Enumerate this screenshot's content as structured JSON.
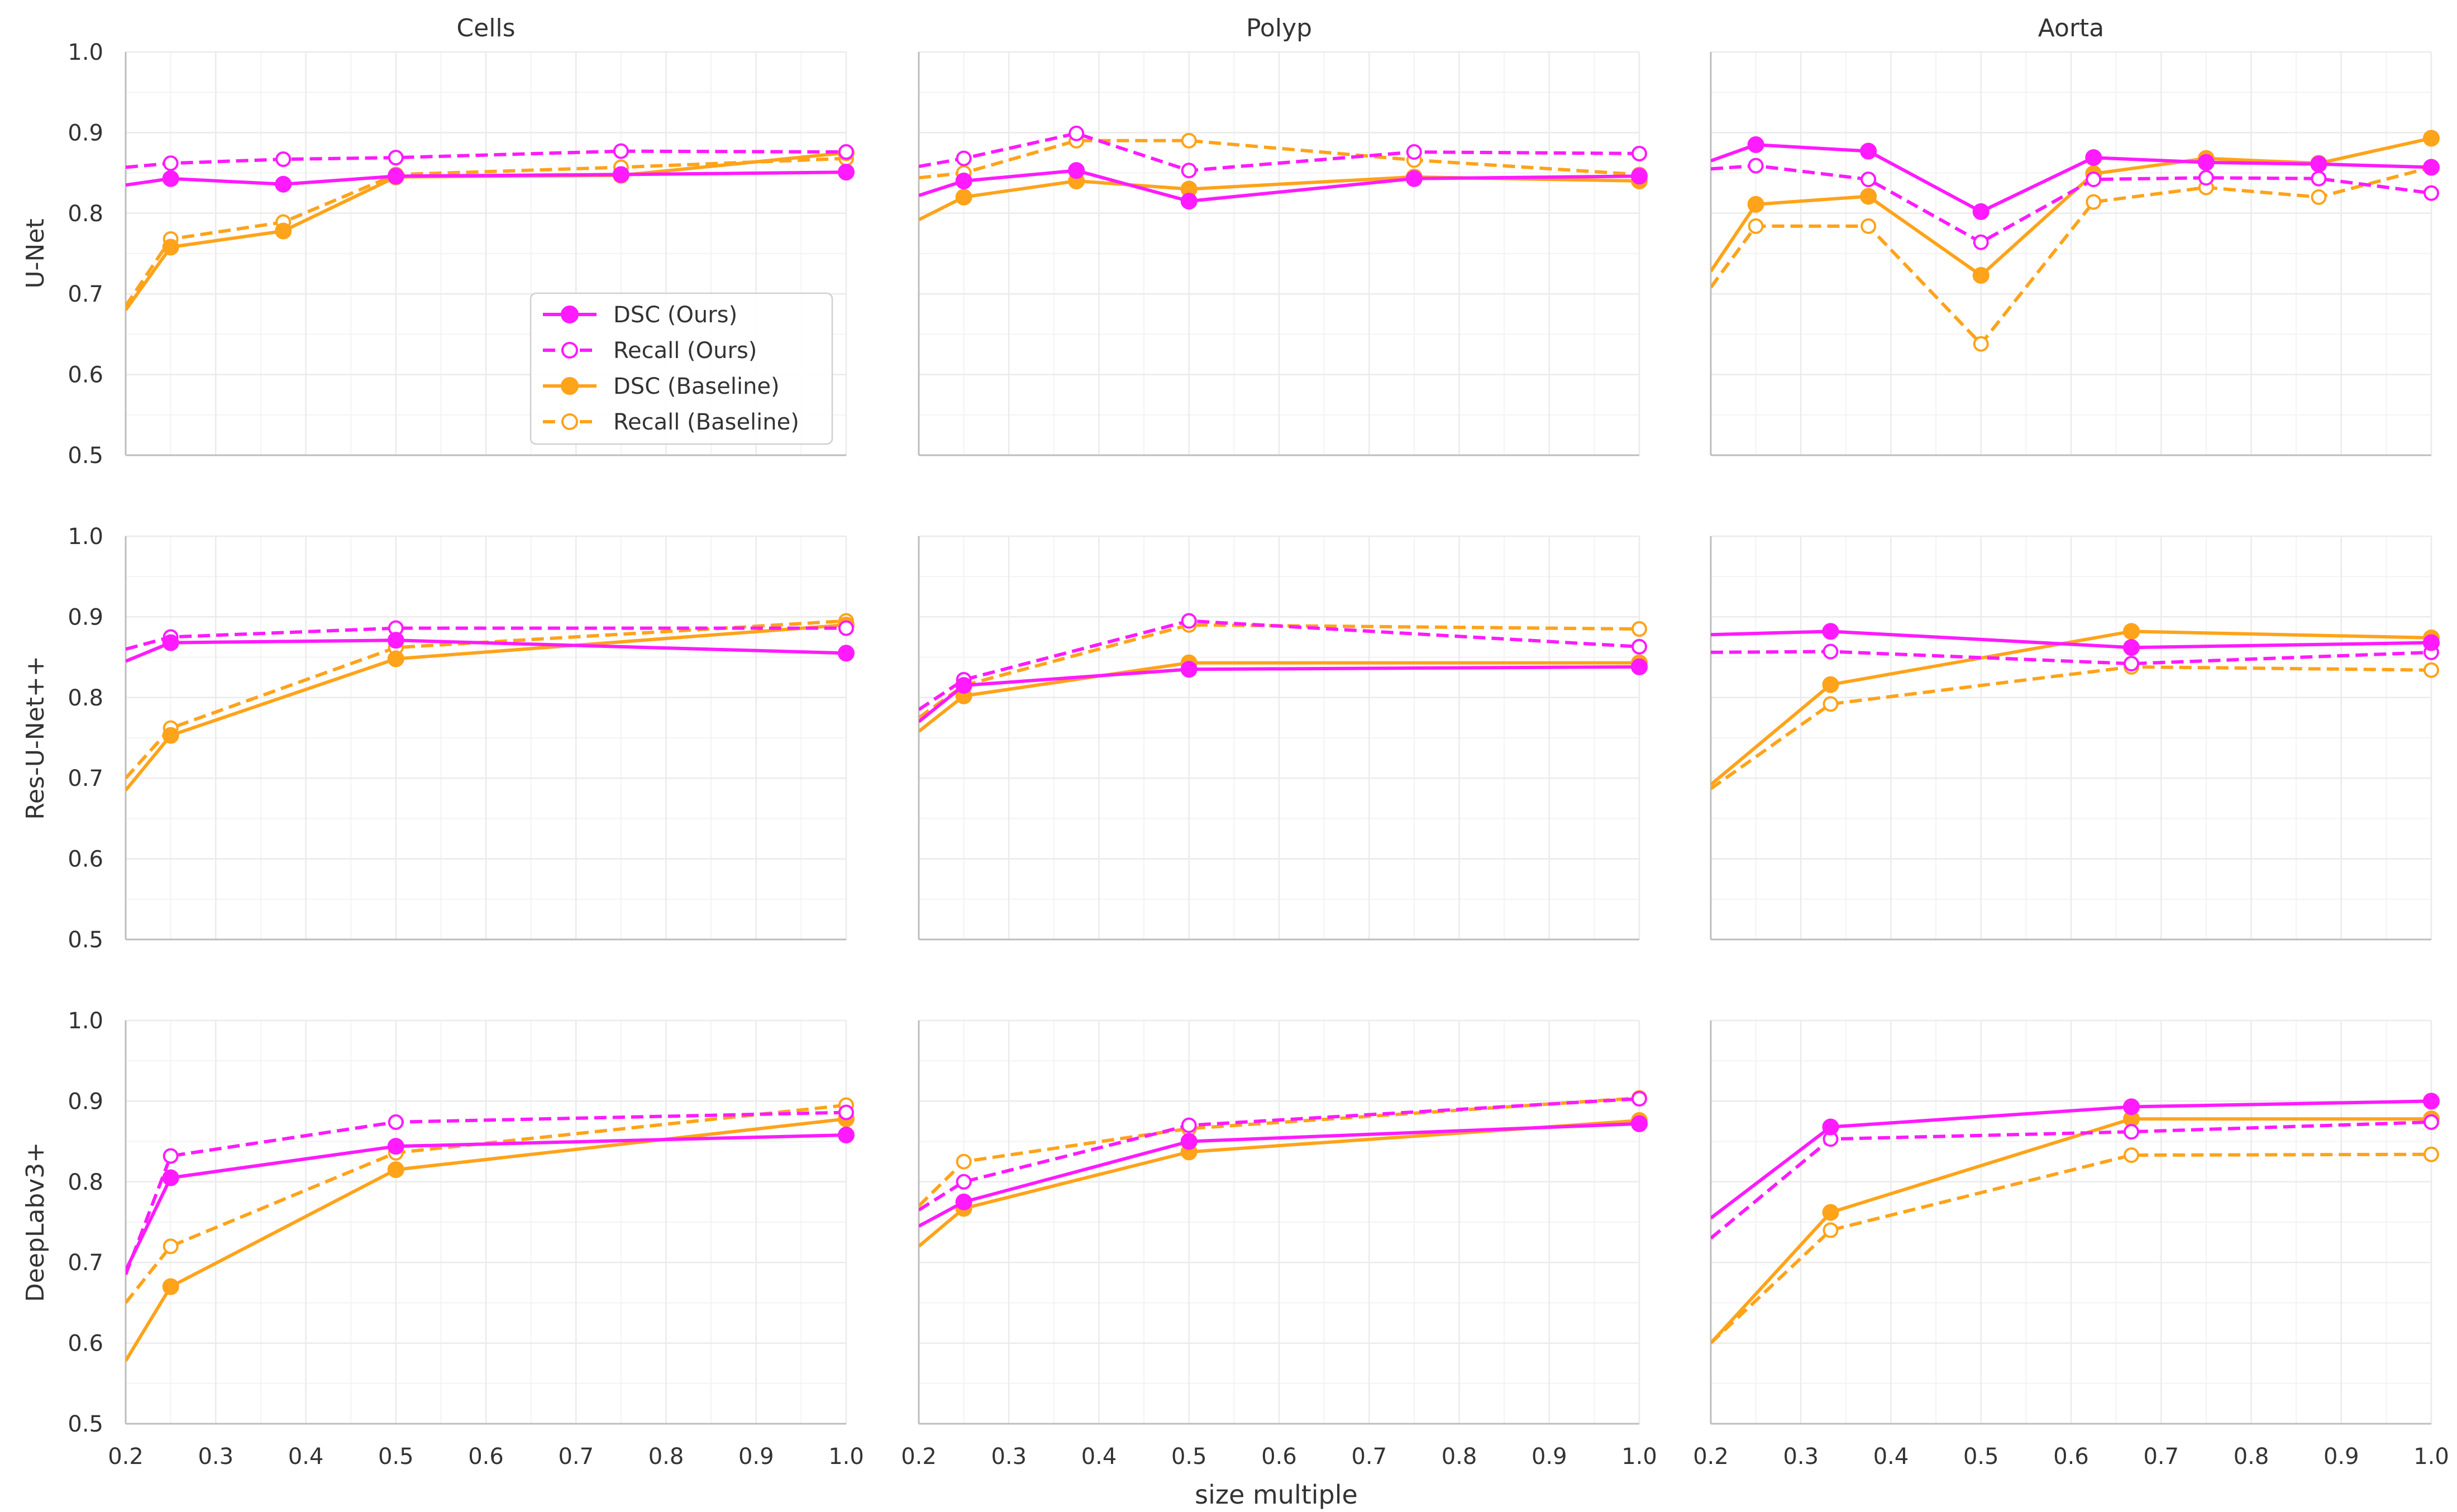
{
  "colors": {
    "ours": "#ff1aff",
    "baseline": "#ffa31a",
    "grid": "#ebebeb",
    "axis": "#bdbdbd"
  },
  "figure": {
    "xlabel": "size multiple",
    "columns": [
      "Cells",
      "Polyp",
      "Aorta"
    ],
    "rows": [
      "U-Net",
      "Res-U-Net++",
      "DeepLabv3+"
    ],
    "xticks": [
      "0.2",
      "0.3",
      "0.4",
      "0.5",
      "0.6",
      "0.7",
      "0.8",
      "0.9",
      "1.0"
    ],
    "yticks": [
      "0.5",
      "0.6",
      "0.7",
      "0.8",
      "0.9",
      "1.0"
    ]
  },
  "legend": {
    "placement": "lower-right of top-left panel",
    "entries": [
      {
        "label": "DSC (Ours)",
        "color": "ours",
        "dash": false,
        "filled": true
      },
      {
        "label": "Recall (Ours)",
        "color": "ours",
        "dash": true,
        "filled": false
      },
      {
        "label": "DSC (Baseline)",
        "color": "baseline",
        "dash": false,
        "filled": true
      },
      {
        "label": "Recall (Baseline)",
        "color": "baseline",
        "dash": true,
        "filled": false
      }
    ]
  },
  "chart_data": [
    {
      "type": "line",
      "row": "U-Net",
      "column": "Cells",
      "xlim": [
        0.2,
        1.0
      ],
      "ylim": [
        0.5,
        1.0
      ],
      "series": [
        {
          "name": "DSC (Ours)",
          "x": [
            0.2,
            0.25,
            0.375,
            0.5,
            0.75,
            1.0
          ],
          "y": [
            0.835,
            0.843,
            0.836,
            0.846,
            0.848,
            0.851
          ]
        },
        {
          "name": "Recall (Ours)",
          "x": [
            0.2,
            0.25,
            0.375,
            0.5,
            0.75,
            1.0
          ],
          "y": [
            0.857,
            0.862,
            0.867,
            0.869,
            0.877,
            0.876
          ]
        },
        {
          "name": "DSC (Baseline)",
          "x": [
            0.2,
            0.25,
            0.375,
            0.5,
            0.75,
            1.0
          ],
          "y": [
            0.68,
            0.758,
            0.778,
            0.845,
            0.847,
            0.875
          ]
        },
        {
          "name": "Recall (Baseline)",
          "x": [
            0.2,
            0.25,
            0.375,
            0.5,
            0.75,
            1.0
          ],
          "y": [
            0.685,
            0.768,
            0.789,
            0.848,
            0.857,
            0.868
          ]
        }
      ]
    },
    {
      "type": "line",
      "row": "U-Net",
      "column": "Polyp",
      "xlim": [
        0.2,
        1.0
      ],
      "ylim": [
        0.5,
        1.0
      ],
      "series": [
        {
          "name": "DSC (Ours)",
          "x": [
            0.2,
            0.25,
            0.375,
            0.5,
            0.75,
            1.0
          ],
          "y": [
            0.822,
            0.84,
            0.853,
            0.815,
            0.843,
            0.846
          ]
        },
        {
          "name": "Recall (Ours)",
          "x": [
            0.2,
            0.25,
            0.375,
            0.5,
            0.75,
            1.0
          ],
          "y": [
            0.858,
            0.868,
            0.899,
            0.853,
            0.876,
            0.874
          ]
        },
        {
          "name": "DSC (Baseline)",
          "x": [
            0.2,
            0.25,
            0.375,
            0.5,
            0.75,
            1.0
          ],
          "y": [
            0.792,
            0.82,
            0.84,
            0.83,
            0.845,
            0.84
          ]
        },
        {
          "name": "Recall (Baseline)",
          "x": [
            0.2,
            0.25,
            0.375,
            0.5,
            0.75,
            1.0
          ],
          "y": [
            0.844,
            0.85,
            0.89,
            0.89,
            0.866,
            0.848
          ]
        }
      ]
    },
    {
      "type": "line",
      "row": "U-Net",
      "column": "Aorta",
      "xlim": [
        0.2,
        1.0
      ],
      "ylim": [
        0.5,
        1.0
      ],
      "series": [
        {
          "name": "DSC (Ours)",
          "x": [
            0.2,
            0.25,
            0.375,
            0.5,
            0.625,
            0.75,
            0.875,
            1.0
          ],
          "y": [
            0.865,
            0.885,
            0.877,
            0.802,
            0.869,
            0.863,
            0.861,
            0.857
          ]
        },
        {
          "name": "Recall (Ours)",
          "x": [
            0.2,
            0.25,
            0.375,
            0.5,
            0.625,
            0.75,
            0.875,
            1.0
          ],
          "y": [
            0.855,
            0.859,
            0.842,
            0.764,
            0.842,
            0.844,
            0.843,
            0.825
          ]
        },
        {
          "name": "DSC (Baseline)",
          "x": [
            0.2,
            0.25,
            0.375,
            0.5,
            0.625,
            0.75,
            0.875,
            1.0
          ],
          "y": [
            0.728,
            0.811,
            0.821,
            0.723,
            0.849,
            0.868,
            0.862,
            0.893
          ]
        },
        {
          "name": "Recall (Baseline)",
          "x": [
            0.2,
            0.25,
            0.375,
            0.5,
            0.625,
            0.75,
            0.875,
            1.0
          ],
          "y": [
            0.708,
            0.784,
            0.784,
            0.638,
            0.814,
            0.832,
            0.82,
            0.857
          ]
        }
      ]
    },
    {
      "type": "line",
      "row": "Res-U-Net++",
      "column": "Cells",
      "xlim": [
        0.2,
        1.0
      ],
      "ylim": [
        0.5,
        1.0
      ],
      "series": [
        {
          "name": "DSC (Ours)",
          "x": [
            0.2,
            0.25,
            0.5,
            1.0
          ],
          "y": [
            0.845,
            0.868,
            0.871,
            0.855
          ]
        },
        {
          "name": "Recall (Ours)",
          "x": [
            0.2,
            0.25,
            0.5,
            1.0
          ],
          "y": [
            0.86,
            0.875,
            0.886,
            0.886
          ]
        },
        {
          "name": "DSC (Baseline)",
          "x": [
            0.2,
            0.25,
            0.5,
            1.0
          ],
          "y": [
            0.685,
            0.753,
            0.848,
            0.89
          ]
        },
        {
          "name": "Recall (Baseline)",
          "x": [
            0.2,
            0.25,
            0.5,
            1.0
          ],
          "y": [
            0.7,
            0.762,
            0.862,
            0.895
          ]
        }
      ]
    },
    {
      "type": "line",
      "row": "Res-U-Net++",
      "column": "Polyp",
      "xlim": [
        0.2,
        1.0
      ],
      "ylim": [
        0.5,
        1.0
      ],
      "series": [
        {
          "name": "DSC (Ours)",
          "x": [
            0.2,
            0.25,
            0.5,
            1.0
          ],
          "y": [
            0.77,
            0.815,
            0.835,
            0.838
          ]
        },
        {
          "name": "Recall (Ours)",
          "x": [
            0.2,
            0.25,
            0.5,
            1.0
          ],
          "y": [
            0.785,
            0.822,
            0.895,
            0.863
          ]
        },
        {
          "name": "DSC (Baseline)",
          "x": [
            0.2,
            0.25,
            0.5,
            1.0
          ],
          "y": [
            0.758,
            0.802,
            0.843,
            0.843
          ]
        },
        {
          "name": "Recall (Baseline)",
          "x": [
            0.2,
            0.25,
            0.5,
            1.0
          ],
          "y": [
            0.775,
            0.815,
            0.89,
            0.885
          ]
        }
      ]
    },
    {
      "type": "line",
      "row": "Res-U-Net++",
      "column": "Aorta",
      "xlim": [
        0.2,
        1.0
      ],
      "ylim": [
        0.5,
        1.0
      ],
      "series": [
        {
          "name": "DSC (Ours)",
          "x": [
            0.2,
            0.333,
            0.667,
            1.0
          ],
          "y": [
            0.878,
            0.882,
            0.862,
            0.868
          ]
        },
        {
          "name": "Recall (Ours)",
          "x": [
            0.2,
            0.333,
            0.667,
            1.0
          ],
          "y": [
            0.856,
            0.857,
            0.842,
            0.856
          ]
        },
        {
          "name": "DSC (Baseline)",
          "x": [
            0.2,
            0.333,
            0.667,
            1.0
          ],
          "y": [
            0.692,
            0.816,
            0.882,
            0.874
          ]
        },
        {
          "name": "Recall (Baseline)",
          "x": [
            0.2,
            0.333,
            0.667,
            1.0
          ],
          "y": [
            0.687,
            0.792,
            0.838,
            0.834
          ]
        }
      ]
    },
    {
      "type": "line",
      "row": "DeepLabv3+",
      "column": "Cells",
      "xlim": [
        0.2,
        1.0
      ],
      "ylim": [
        0.5,
        1.0
      ],
      "series": [
        {
          "name": "DSC (Ours)",
          "x": [
            0.2,
            0.25,
            0.5,
            1.0
          ],
          "y": [
            0.69,
            0.805,
            0.844,
            0.858
          ]
        },
        {
          "name": "Recall (Ours)",
          "x": [
            0.2,
            0.25,
            0.5,
            1.0
          ],
          "y": [
            0.685,
            0.832,
            0.874,
            0.886
          ]
        },
        {
          "name": "DSC (Baseline)",
          "x": [
            0.2,
            0.25,
            0.5,
            1.0
          ],
          "y": [
            0.578,
            0.67,
            0.815,
            0.878
          ]
        },
        {
          "name": "Recall (Baseline)",
          "x": [
            0.2,
            0.25,
            0.5,
            1.0
          ],
          "y": [
            0.65,
            0.72,
            0.836,
            0.895
          ]
        }
      ]
    },
    {
      "type": "line",
      "row": "DeepLabv3+",
      "column": "Polyp",
      "xlim": [
        0.2,
        1.0
      ],
      "ylim": [
        0.5,
        1.0
      ],
      "series": [
        {
          "name": "DSC (Ours)",
          "x": [
            0.2,
            0.25,
            0.5,
            1.0
          ],
          "y": [
            0.745,
            0.775,
            0.85,
            0.872
          ]
        },
        {
          "name": "Recall (Ours)",
          "x": [
            0.2,
            0.25,
            0.5,
            1.0
          ],
          "y": [
            0.765,
            0.8,
            0.87,
            0.903
          ]
        },
        {
          "name": "DSC (Baseline)",
          "x": [
            0.2,
            0.25,
            0.5,
            1.0
          ],
          "y": [
            0.72,
            0.767,
            0.837,
            0.876
          ]
        },
        {
          "name": "Recall (Baseline)",
          "x": [
            0.2,
            0.25,
            0.5,
            1.0
          ],
          "y": [
            0.77,
            0.825,
            0.866,
            0.904
          ]
        }
      ]
    },
    {
      "type": "line",
      "row": "DeepLabv3+",
      "column": "Aorta",
      "xlim": [
        0.2,
        1.0
      ],
      "ylim": [
        0.5,
        1.0
      ],
      "series": [
        {
          "name": "DSC (Ours)",
          "x": [
            0.2,
            0.333,
            0.667,
            1.0
          ],
          "y": [
            0.755,
            0.868,
            0.893,
            0.9
          ]
        },
        {
          "name": "Recall (Ours)",
          "x": [
            0.2,
            0.333,
            0.667,
            1.0
          ],
          "y": [
            0.73,
            0.853,
            0.862,
            0.874
          ]
        },
        {
          "name": "DSC (Baseline)",
          "x": [
            0.2,
            0.333,
            0.667,
            1.0
          ],
          "y": [
            0.6,
            0.762,
            0.878,
            0.878
          ]
        },
        {
          "name": "Recall (Baseline)",
          "x": [
            0.2,
            0.333,
            0.667,
            1.0
          ],
          "y": [
            0.6,
            0.74,
            0.833,
            0.834
          ]
        }
      ]
    }
  ]
}
